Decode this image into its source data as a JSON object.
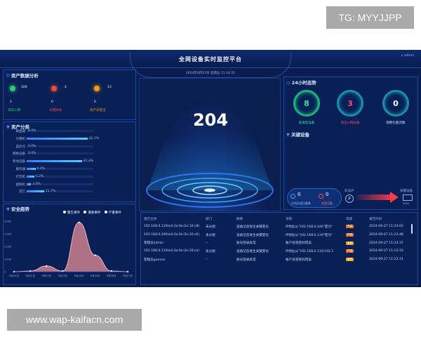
{
  "watermarks": {
    "top": "TG: MYYJJPP",
    "bottom": "www.wap-kaifacn.com"
  },
  "header": {
    "title": "全网设备实时监控平台",
    "datetime": "2024年9月27日 星期五 11:24:22",
    "home_label": "admin"
  },
  "asset_stats": {
    "title": "资产数据分析",
    "items": [
      {
        "count": "100",
        "sub_value": "1",
        "label": "未知入网",
        "color": "#2ecc71"
      },
      {
        "count": "4",
        "sub_value": "0",
        "label": "长期离线",
        "color": "#e74c3c"
      },
      {
        "count": "23",
        "sub_value": "0",
        "label": "资产未登记",
        "color": "#f39c12"
      }
    ]
  },
  "asset_class": {
    "title": "资产分类",
    "rows": [
      {
        "label": "路由器",
        "pct": "0.0%",
        "value": 0.0
      },
      {
        "label": "计算机",
        "pct": "41.1%",
        "value": 41.1
      },
      {
        "label": "监控点",
        "pct": "0.0%",
        "value": 0.0
      },
      {
        "label": "网络设备",
        "pct": "0.0%",
        "value": 0.0
      },
      {
        "label": "移动设备",
        "pct": "37.3%",
        "value": 37.3
      },
      {
        "label": "服务器",
        "pct": "6.0%",
        "value": 6.0
      },
      {
        "label": "打印机",
        "pct": "5.2%",
        "value": 5.2
      },
      {
        "label": "虚拟机",
        "pct": "3.0%",
        "value": 3.0
      },
      {
        "label": "其它",
        "pct": "11.7%",
        "value": 11.7
      }
    ]
  },
  "security_trend": {
    "title": "安全趋势",
    "legend": [
      "警告事件",
      "重要事件",
      "严重事件"
    ],
    "y_ticks": [
      "4,000",
      "3,000",
      "2,000",
      "1,000",
      "0"
    ],
    "x_ticks": [
      "9月20日",
      "9月21日",
      "9月22日",
      "9月23日",
      "9月24日",
      "9月25日",
      "9月26日",
      "9月27日"
    ]
  },
  "chart_data": {
    "type": "area",
    "categories": [
      "9月20日",
      "9月21日",
      "9月22日",
      "9月23日",
      "9月24日",
      "9月25日",
      "9月26日",
      "9月27日"
    ],
    "series": [
      {
        "name": "严重事件",
        "values": [
          0,
          50,
          450,
          50,
          3900,
          1300,
          50,
          0
        ]
      }
    ],
    "ylim": [
      0,
      4000
    ],
    "y_ticks": [
      0,
      1000,
      2000,
      3000,
      4000
    ],
    "legend": "top-right",
    "grid": false
  },
  "center": {
    "big_number": "204"
  },
  "trend24": {
    "title": "24小时态势",
    "rings": [
      {
        "value": "8",
        "label": "新发现设备",
        "color": "#2ee6a0"
      },
      {
        "value": "3",
        "label": "非法入网设备",
        "color": "#ff4a5a"
      },
      {
        "value": "0",
        "label": "阻断拦截次数",
        "color": "#ffffff"
      }
    ]
  },
  "key_devices": {
    "title": "关键设备",
    "online": {
      "value": "0",
      "label": "在线关键设备数"
    },
    "offline": {
      "value": "0",
      "label": "失联设备"
    },
    "illegal_ip_label": "非法IP",
    "key_device_label": "关键设备",
    "device_code": "2004"
  },
  "events": {
    "headers": [
      "报告主体",
      "部门",
      "摘要",
      "详情",
      "等级",
      "报告时间"
    ],
    "rows": [
      {
        "subject": "192.168.0.119(e4:3a:6e:2e:10:c8)",
        "dept": "未分组",
        "summary": "设备信息发生关键变化",
        "detail": "IP地址从\"192.168.0.246\"变为\"",
        "level": "严重",
        "time": "2024-09-27 11:24:03"
      },
      {
        "subject": "192.168.0.240(e4:3a:6e:2e:10:c6)",
        "dept": "未分组",
        "summary": "设备信息发生关键变化",
        "detail": "IP地址从\"192.168.0.119\"变为\"",
        "level": "严重",
        "time": "2024-09-27 11:23:48"
      },
      {
        "subject": "管理员admin",
        "dept": "--",
        "summary": "账号登录异常",
        "detail": "账户名或密码错误",
        "level": "重要",
        "time": "2024-09-27 11:23:37"
      },
      {
        "subject": "192.168.0.119(e4:3a:6e:2e:10:ca)",
        "dept": "未分组",
        "summary": "设备信息发生关键变化",
        "detail": "IP地址从\"192.168.0.119;192.1",
        "level": "严重",
        "time": "2024-09-27 11:23:33"
      },
      {
        "subject": "管理员gooson",
        "dept": "--",
        "summary": "账号登录异常",
        "detail": "账户名或密码错误",
        "level": "重要",
        "time": "2024-09-27 11:23:31"
      }
    ]
  }
}
